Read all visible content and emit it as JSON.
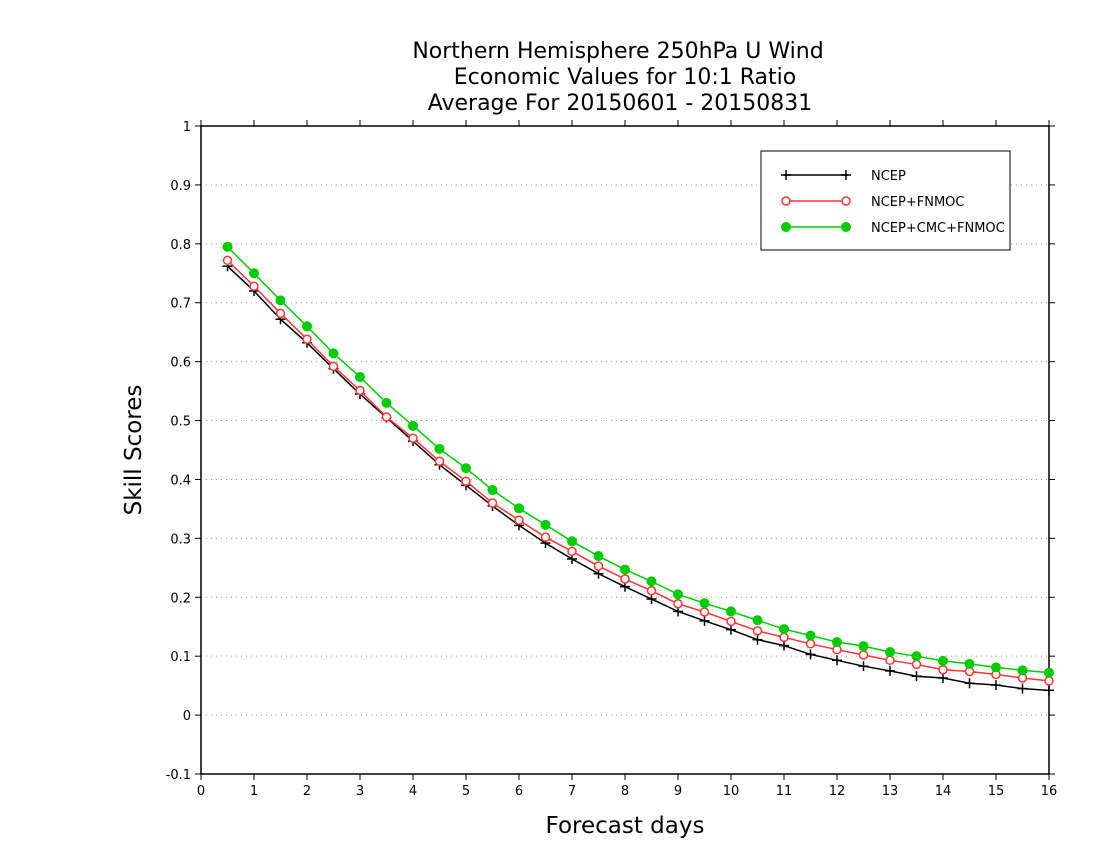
{
  "chart_data": {
    "type": "line",
    "title": [
      "Northern Hemisphere 250hPa U Wind",
      "Economic Values for 10:1 Ratio",
      "Average For 20150601 - 20150831"
    ],
    "xlabel": "Forecast days",
    "ylabel": "Skill Scores",
    "xlim": [
      0,
      16
    ],
    "ylim": [
      -0.1,
      1
    ],
    "x_ticks": [
      "0",
      "1",
      "2",
      "3",
      "4",
      "5",
      "6",
      "7",
      "8",
      "9",
      "10",
      "11",
      "12",
      "13",
      "14",
      "15",
      "16"
    ],
    "y_ticks": [
      "-0.1",
      "0",
      "0.1",
      "0.2",
      "0.3",
      "0.4",
      "0.5",
      "0.6",
      "0.7",
      "0.8",
      "0.9",
      "1"
    ],
    "grid": "horizontal dotted",
    "legend_position": "top-right",
    "x": [
      0.5,
      1,
      1.5,
      2,
      2.5,
      3,
      3.5,
      4,
      4.5,
      5,
      5.5,
      6,
      6.5,
      7,
      7.5,
      8,
      8.5,
      9,
      9.5,
      10,
      10.5,
      11,
      11.5,
      12,
      12.5,
      13,
      13.5,
      14,
      14.5,
      15,
      15.5,
      16
    ],
    "series": [
      {
        "name": "NCEP",
        "color": "#000000",
        "marker": "plus",
        "values": [
          0.762,
          0.72,
          0.672,
          0.632,
          0.588,
          0.545,
          0.505,
          0.465,
          0.425,
          0.39,
          0.355,
          0.322,
          0.292,
          0.265,
          0.24,
          0.218,
          0.197,
          0.176,
          0.16,
          0.145,
          0.128,
          0.118,
          0.103,
          0.093,
          0.083,
          0.075,
          0.066,
          0.063,
          0.054,
          0.051,
          0.045,
          0.042
        ]
      },
      {
        "name": "NCEP+FNMOC",
        "color": "#ff3333",
        "marker": "open-circle",
        "values": [
          0.772,
          0.728,
          0.682,
          0.638,
          0.592,
          0.551,
          0.506,
          0.47,
          0.431,
          0.397,
          0.36,
          0.331,
          0.302,
          0.278,
          0.253,
          0.231,
          0.211,
          0.189,
          0.175,
          0.159,
          0.143,
          0.132,
          0.121,
          0.111,
          0.102,
          0.093,
          0.086,
          0.077,
          0.074,
          0.069,
          0.063,
          0.058
        ]
      },
      {
        "name": "NCEP+CMC+FNMOC",
        "color": "#00cc00",
        "marker": "filled-circle",
        "values": [
          0.795,
          0.75,
          0.704,
          0.66,
          0.614,
          0.574,
          0.53,
          0.491,
          0.452,
          0.419,
          0.382,
          0.351,
          0.323,
          0.295,
          0.27,
          0.247,
          0.227,
          0.205,
          0.19,
          0.176,
          0.161,
          0.146,
          0.135,
          0.124,
          0.117,
          0.107,
          0.1,
          0.092,
          0.087,
          0.081,
          0.076,
          0.072
        ]
      }
    ]
  }
}
